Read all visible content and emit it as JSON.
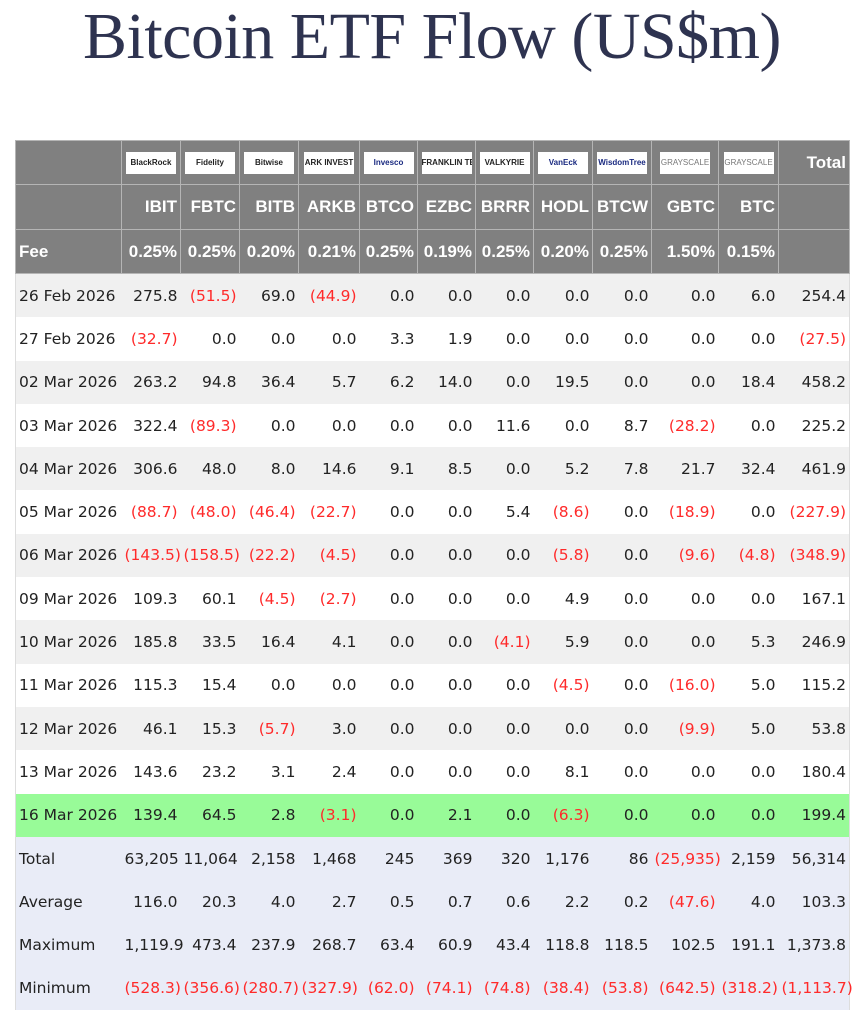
{
  "title": "Bitcoin ETF Flow (US$m)",
  "colors": {
    "header_bg": "#808080",
    "negative": "#ff2a2a",
    "highlight": "#98fb98",
    "summary_bg": "#e9ecf7",
    "title": "#2e3350"
  },
  "issuers": [
    "BlackRock",
    "Fidelity",
    "Bitwise",
    "ARK INVEST",
    "Invesco",
    "FRANKLIN TEMPLETON",
    "VALKYRIE",
    "VanEck",
    "WisdomTree",
    "GRAYSCALE",
    "GRAYSCALE"
  ],
  "total_header": "Total",
  "tickers": [
    "IBIT",
    "FBTC",
    "BITB",
    "ARKB",
    "BTCO",
    "EZBC",
    "BRRR",
    "HODL",
    "BTCW",
    "GBTC",
    "BTC"
  ],
  "fee_label": "Fee",
  "fees": [
    "0.25%",
    "0.25%",
    "0.20%",
    "0.21%",
    "0.25%",
    "0.19%",
    "0.25%",
    "0.20%",
    "0.25%",
    "1.50%",
    "0.15%"
  ],
  "rows": [
    {
      "date": "26 Feb 2026",
      "values": [
        "275.8",
        "(51.5)",
        "69.0",
        "(44.9)",
        "0.0",
        "0.0",
        "0.0",
        "0.0",
        "0.0",
        "0.0",
        "6.0",
        "254.4"
      ]
    },
    {
      "date": "27 Feb 2026",
      "values": [
        "(32.7)",
        "0.0",
        "0.0",
        "0.0",
        "3.3",
        "1.9",
        "0.0",
        "0.0",
        "0.0",
        "0.0",
        "0.0",
        "(27.5)"
      ]
    },
    {
      "date": "02 Mar 2026",
      "values": [
        "263.2",
        "94.8",
        "36.4",
        "5.7",
        "6.2",
        "14.0",
        "0.0",
        "19.5",
        "0.0",
        "0.0",
        "18.4",
        "458.2"
      ]
    },
    {
      "date": "03 Mar 2026",
      "values": [
        "322.4",
        "(89.3)",
        "0.0",
        "0.0",
        "0.0",
        "0.0",
        "11.6",
        "0.0",
        "8.7",
        "(28.2)",
        "0.0",
        "225.2"
      ]
    },
    {
      "date": "04 Mar 2026",
      "values": [
        "306.6",
        "48.0",
        "8.0",
        "14.6",
        "9.1",
        "8.5",
        "0.0",
        "5.2",
        "7.8",
        "21.7",
        "32.4",
        "461.9"
      ]
    },
    {
      "date": "05 Mar 2026",
      "values": [
        "(88.7)",
        "(48.0)",
        "(46.4)",
        "(22.7)",
        "0.0",
        "0.0",
        "5.4",
        "(8.6)",
        "0.0",
        "(18.9)",
        "0.0",
        "(227.9)"
      ]
    },
    {
      "date": "06 Mar 2026",
      "values": [
        "(143.5)",
        "(158.5)",
        "(22.2)",
        "(4.5)",
        "0.0",
        "0.0",
        "0.0",
        "(5.8)",
        "0.0",
        "(9.6)",
        "(4.8)",
        "(348.9)"
      ]
    },
    {
      "date": "09 Mar 2026",
      "values": [
        "109.3",
        "60.1",
        "(4.5)",
        "(2.7)",
        "0.0",
        "0.0",
        "0.0",
        "4.9",
        "0.0",
        "0.0",
        "0.0",
        "167.1"
      ]
    },
    {
      "date": "10 Mar 2026",
      "values": [
        "185.8",
        "33.5",
        "16.4",
        "4.1",
        "0.0",
        "0.0",
        "(4.1)",
        "5.9",
        "0.0",
        "0.0",
        "5.3",
        "246.9"
      ]
    },
    {
      "date": "11 Mar 2026",
      "values": [
        "115.3",
        "15.4",
        "0.0",
        "0.0",
        "0.0",
        "0.0",
        "0.0",
        "(4.5)",
        "0.0",
        "(16.0)",
        "5.0",
        "115.2"
      ]
    },
    {
      "date": "12 Mar 2026",
      "values": [
        "46.1",
        "15.3",
        "(5.7)",
        "3.0",
        "0.0",
        "0.0",
        "0.0",
        "0.0",
        "0.0",
        "(9.9)",
        "5.0",
        "53.8"
      ]
    },
    {
      "date": "13 Mar 2026",
      "values": [
        "143.6",
        "23.2",
        "3.1",
        "2.4",
        "0.0",
        "0.0",
        "0.0",
        "8.1",
        "0.0",
        "0.0",
        "0.0",
        "180.4"
      ]
    },
    {
      "date": "16 Mar 2026",
      "highlight": true,
      "values": [
        "139.4",
        "64.5",
        "2.8",
        "(3.1)",
        "0.0",
        "2.1",
        "0.0",
        "(6.3)",
        "0.0",
        "0.0",
        "0.0",
        "199.4"
      ]
    }
  ],
  "summary": [
    {
      "label": "Total",
      "values": [
        "63,205",
        "11,064",
        "2,158",
        "1,468",
        "245",
        "369",
        "320",
        "1,176",
        "86",
        "(25,935)",
        "2,159",
        "56,314"
      ]
    },
    {
      "label": "Average",
      "values": [
        "116.0",
        "20.3",
        "4.0",
        "2.7",
        "0.5",
        "0.7",
        "0.6",
        "2.2",
        "0.2",
        "(47.6)",
        "4.0",
        "103.3"
      ]
    },
    {
      "label": "Maximum",
      "values": [
        "1,119.9",
        "473.4",
        "237.9",
        "268.7",
        "63.4",
        "60.9",
        "43.4",
        "118.8",
        "118.5",
        "102.5",
        "191.1",
        "1,373.8"
      ]
    },
    {
      "label": "Minimum",
      "values": [
        "(528.3)",
        "(356.6)",
        "(280.7)",
        "(327.9)",
        "(62.0)",
        "(74.1)",
        "(74.8)",
        "(38.4)",
        "(53.8)",
        "(642.5)",
        "(318.2)",
        "(1,113.7)"
      ]
    }
  ]
}
